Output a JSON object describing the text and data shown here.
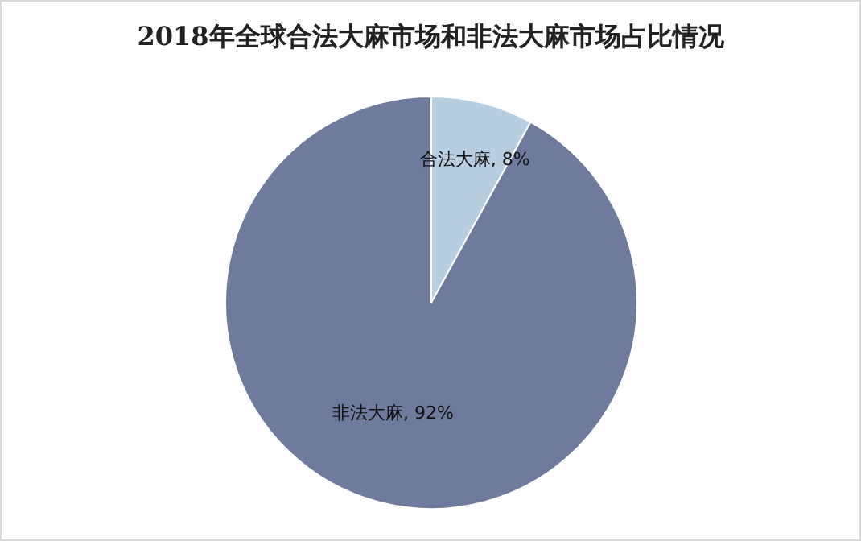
{
  "chart_data": {
    "type": "pie",
    "title": "2018年全球合法大麻市场和非法大麻市场占比情况",
    "categories": [
      "合法大麻",
      "非法大麻"
    ],
    "values": [
      8,
      92
    ],
    "value_labels": [
      ", 8%",
      ", 92%"
    ],
    "colors": [
      "#b7cde0",
      "#6e7b9c"
    ]
  }
}
